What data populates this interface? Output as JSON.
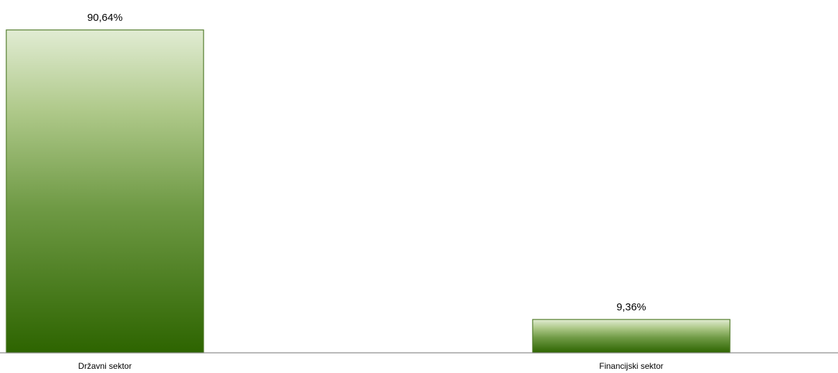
{
  "chart_data": {
    "type": "bar",
    "categories": [
      "Državni sektor",
      "Financijski sektor"
    ],
    "values": [
      90.64,
      9.36
    ],
    "data_labels": [
      "90,64%",
      "9,36%"
    ],
    "title": "",
    "xlabel": "",
    "ylabel": "",
    "ylim": [
      0,
      100
    ],
    "grid": false,
    "legend": "none",
    "colors": {
      "bar_top": "#e1ecd3",
      "bar_bottom": "#2d6400",
      "bar_border": "#4f7a28",
      "axis": "#8c8c8c"
    }
  }
}
